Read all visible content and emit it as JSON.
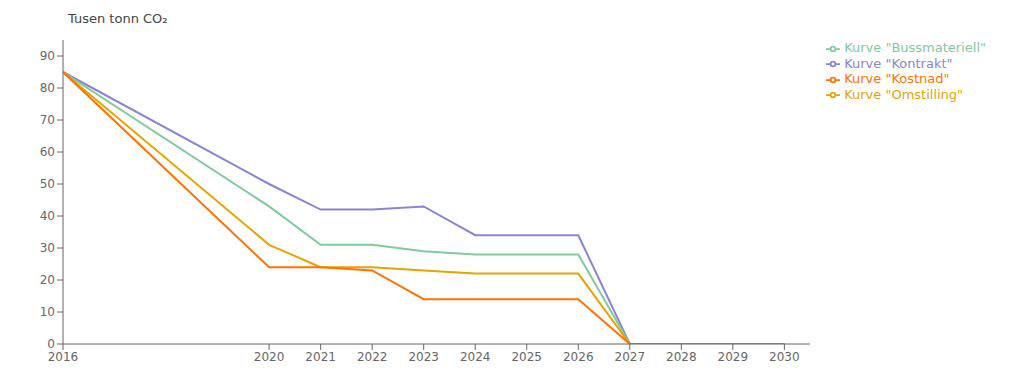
{
  "chart_data": {
    "type": "line",
    "y_label": "Tusen tonn CO₂",
    "x": [
      2016,
      2020,
      2021,
      2022,
      2023,
      2024,
      2025,
      2026,
      2027,
      2028,
      2029,
      2030
    ],
    "series": [
      {
        "name": "Kurve \"Kontrakt\"",
        "color": "#8884d8",
        "values": [
          85,
          50,
          42,
          42,
          43,
          34,
          34,
          34,
          0,
          0,
          0,
          0
        ]
      },
      {
        "name": "Kurve \"Bussmateriell\"",
        "color": "#82ca9d",
        "values": [
          85,
          43,
          31,
          31,
          29,
          28,
          28,
          28,
          0,
          0,
          0,
          0
        ]
      },
      {
        "name": "Kurve \"Omstilling\"",
        "color": "#e6a400",
        "values": [
          85,
          31,
          24,
          24,
          23,
          22,
          22,
          22,
          0,
          0,
          0,
          0
        ]
      },
      {
        "name": "Kurve \"Kostnad\"",
        "color": "#ff7300",
        "values": [
          85,
          24,
          24,
          23,
          14,
          14,
          14,
          14,
          0,
          0,
          0,
          0
        ]
      }
    ],
    "xlim": [
      2016,
      2030.5
    ],
    "xticks": [
      2016,
      2020,
      2021,
      2022,
      2023,
      2024,
      2025,
      2026,
      2027,
      2028,
      2029,
      2030
    ],
    "ylim": [
      0,
      95
    ],
    "yticks": [
      0,
      10,
      20,
      30,
      40,
      50,
      60,
      70,
      80,
      90
    ],
    "grid": false,
    "legend": "upper right"
  }
}
